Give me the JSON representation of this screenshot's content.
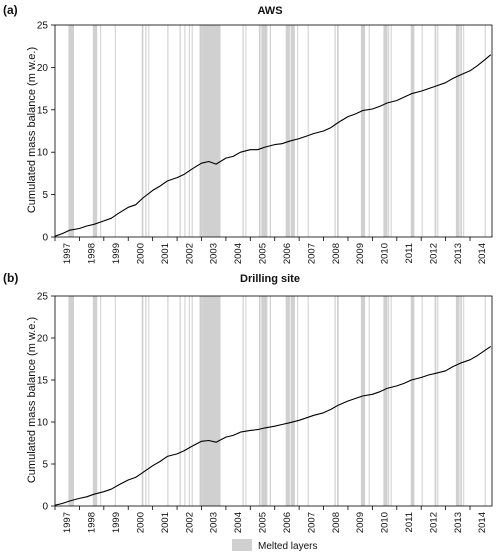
{
  "chart_data": [
    {
      "type": "line",
      "panel_label": "(a)",
      "title": "AWS",
      "ylabel": "Cumulated mass balance (m w.e.)",
      "xlabel": "",
      "xlim": [
        1997.0,
        2014.9
      ],
      "ylim": [
        0,
        25
      ],
      "yticks": [
        0,
        5,
        10,
        15,
        20,
        25
      ],
      "xtick_labels": [
        "1997",
        "1998",
        "1999",
        "2000",
        "2001",
        "2002",
        "2003",
        "2004",
        "2005",
        "2006",
        "2007",
        "2008",
        "2009",
        "2010",
        "2011",
        "2012",
        "2013",
        "2014"
      ],
      "series": [
        {
          "name": "",
          "x": [
            1997.0,
            1997.3,
            1997.6,
            1998.0,
            1998.3,
            1998.6,
            1999.0,
            1999.3,
            1999.6,
            2000.0,
            2000.3,
            2000.6,
            2001.0,
            2001.3,
            2001.6,
            2002.0,
            2002.3,
            2002.6,
            2003.0,
            2003.3,
            2003.6,
            2004.0,
            2004.3,
            2004.6,
            2005.0,
            2005.3,
            2005.6,
            2006.0,
            2006.3,
            2006.6,
            2007.0,
            2007.3,
            2007.6,
            2008.0,
            2008.3,
            2008.6,
            2009.0,
            2009.3,
            2009.6,
            2010.0,
            2010.3,
            2010.6,
            2011.0,
            2011.3,
            2011.6,
            2012.0,
            2012.3,
            2012.6,
            2013.0,
            2013.3,
            2013.6,
            2014.0,
            2014.3,
            2014.6,
            2014.85
          ],
          "y": [
            0.1,
            0.4,
            0.8,
            1.0,
            1.3,
            1.5,
            1.9,
            2.2,
            2.8,
            3.5,
            3.8,
            4.6,
            5.5,
            6.0,
            6.6,
            7.0,
            7.4,
            8.0,
            8.7,
            8.9,
            8.6,
            9.3,
            9.5,
            10.0,
            10.3,
            10.3,
            10.6,
            10.9,
            11.0,
            11.3,
            11.6,
            11.9,
            12.2,
            12.5,
            12.9,
            13.5,
            14.2,
            14.5,
            14.9,
            15.1,
            15.4,
            15.8,
            16.1,
            16.5,
            16.9,
            17.2,
            17.5,
            17.8,
            18.2,
            18.7,
            19.1,
            19.6,
            20.2,
            20.9,
            21.5
          ]
        }
      ],
      "shaded_intervals": [
        [
          1997.55,
          1997.78
        ],
        [
          1998.55,
          1998.73
        ],
        [
          1998.85,
          1998.89
        ],
        [
          1999.45,
          1999.49
        ],
        [
          2000.55,
          2000.62
        ],
        [
          2000.7,
          2000.75
        ],
        [
          2000.82,
          2000.86
        ],
        [
          2001.6,
          2001.65
        ],
        [
          2002.1,
          2002.15
        ],
        [
          2002.3,
          2002.33
        ],
        [
          2002.48,
          2002.52
        ],
        [
          2002.6,
          2002.64
        ],
        [
          2002.92,
          2003.05
        ],
        [
          2003.05,
          2003.78
        ],
        [
          2004.68,
          2004.73
        ],
        [
          2004.8,
          2004.84
        ],
        [
          2005.35,
          2005.42
        ],
        [
          2005.45,
          2005.7
        ],
        [
          2005.8,
          2005.85
        ],
        [
          2006.45,
          2006.62
        ],
        [
          2006.65,
          2006.82
        ],
        [
          2006.92,
          2006.96
        ],
        [
          2007.35,
          2007.39
        ],
        [
          2008.45,
          2008.5
        ],
        [
          2008.55,
          2008.62
        ],
        [
          2009.53,
          2009.7
        ],
        [
          2009.85,
          2009.89
        ],
        [
          2010.45,
          2010.62
        ],
        [
          2010.65,
          2010.68
        ],
        [
          2010.75,
          2010.79
        ],
        [
          2011.57,
          2011.72
        ],
        [
          2012.02,
          2012.06
        ],
        [
          2012.55,
          2012.62
        ],
        [
          2012.66,
          2012.7
        ],
        [
          2013.42,
          2013.57
        ],
        [
          2013.6,
          2013.67
        ],
        [
          2013.72,
          2013.76
        ],
        [
          2014.6,
          2014.64
        ]
      ],
      "line_color": "#000000",
      "shade_color": "#d0d0d0",
      "grid": false
    },
    {
      "type": "line",
      "panel_label": "(b)",
      "title": "Drilling site",
      "ylabel": "Cumulated mass balance (m w.e.)",
      "xlabel": "",
      "xlim": [
        1997.0,
        2014.9
      ],
      "ylim": [
        0,
        25
      ],
      "yticks": [
        0,
        5,
        10,
        15,
        20,
        25
      ],
      "xtick_labels": [
        "1997",
        "1998",
        "1999",
        "2000",
        "2001",
        "2002",
        "2003",
        "2004",
        "2005",
        "2006",
        "2007",
        "2008",
        "2009",
        "2010",
        "2011",
        "2012",
        "2013",
        "2014"
      ],
      "series": [
        {
          "name": "",
          "x": [
            1997.0,
            1997.3,
            1997.6,
            1998.0,
            1998.3,
            1998.6,
            1999.0,
            1999.3,
            1999.6,
            2000.0,
            2000.3,
            2000.6,
            2001.0,
            2001.3,
            2001.6,
            2002.0,
            2002.3,
            2002.6,
            2003.0,
            2003.3,
            2003.6,
            2004.0,
            2004.3,
            2004.6,
            2005.0,
            2005.3,
            2005.6,
            2006.0,
            2006.3,
            2006.6,
            2007.0,
            2007.3,
            2007.6,
            2008.0,
            2008.3,
            2008.6,
            2009.0,
            2009.3,
            2009.6,
            2010.0,
            2010.3,
            2010.6,
            2011.0,
            2011.3,
            2011.6,
            2012.0,
            2012.3,
            2012.6,
            2013.0,
            2013.3,
            2013.6,
            2014.0,
            2014.3,
            2014.6,
            2014.85
          ],
          "y": [
            0.1,
            0.3,
            0.6,
            0.9,
            1.1,
            1.4,
            1.7,
            2.0,
            2.5,
            3.1,
            3.4,
            4.0,
            4.8,
            5.3,
            5.9,
            6.2,
            6.6,
            7.1,
            7.7,
            7.8,
            7.6,
            8.2,
            8.4,
            8.8,
            9.0,
            9.1,
            9.3,
            9.5,
            9.7,
            9.9,
            10.2,
            10.5,
            10.8,
            11.1,
            11.5,
            12.0,
            12.5,
            12.8,
            13.1,
            13.3,
            13.6,
            14.0,
            14.3,
            14.6,
            15.0,
            15.3,
            15.6,
            15.8,
            16.1,
            16.6,
            17.0,
            17.4,
            17.9,
            18.5,
            19.0
          ]
        }
      ],
      "shaded_intervals": [
        [
          1997.55,
          1997.78
        ],
        [
          1998.55,
          1998.73
        ],
        [
          1998.85,
          1998.89
        ],
        [
          1999.45,
          1999.49
        ],
        [
          2000.55,
          2000.62
        ],
        [
          2000.7,
          2000.75
        ],
        [
          2000.82,
          2000.86
        ],
        [
          2001.6,
          2001.65
        ],
        [
          2002.1,
          2002.15
        ],
        [
          2002.3,
          2002.33
        ],
        [
          2002.48,
          2002.52
        ],
        [
          2002.6,
          2002.64
        ],
        [
          2002.92,
          2003.05
        ],
        [
          2003.05,
          2003.78
        ],
        [
          2004.68,
          2004.73
        ],
        [
          2004.8,
          2004.84
        ],
        [
          2005.35,
          2005.42
        ],
        [
          2005.45,
          2005.7
        ],
        [
          2005.8,
          2005.85
        ],
        [
          2006.45,
          2006.62
        ],
        [
          2006.65,
          2006.82
        ],
        [
          2006.92,
          2006.96
        ],
        [
          2007.35,
          2007.39
        ],
        [
          2008.45,
          2008.5
        ],
        [
          2008.55,
          2008.62
        ],
        [
          2009.53,
          2009.7
        ],
        [
          2009.85,
          2009.89
        ],
        [
          2010.45,
          2010.62
        ],
        [
          2010.65,
          2010.68
        ],
        [
          2010.75,
          2010.79
        ],
        [
          2011.57,
          2011.72
        ],
        [
          2012.02,
          2012.06
        ],
        [
          2012.55,
          2012.62
        ],
        [
          2012.66,
          2012.7
        ],
        [
          2013.42,
          2013.57
        ],
        [
          2013.6,
          2013.67
        ],
        [
          2013.72,
          2013.76
        ],
        [
          2014.6,
          2014.64
        ]
      ],
      "line_color": "#000000",
      "shade_color": "#d0d0d0",
      "grid": false
    }
  ],
  "legend": {
    "label": "Melted layers",
    "swatch_color": "#d0d0d0",
    "placement": "bottom-center"
  }
}
